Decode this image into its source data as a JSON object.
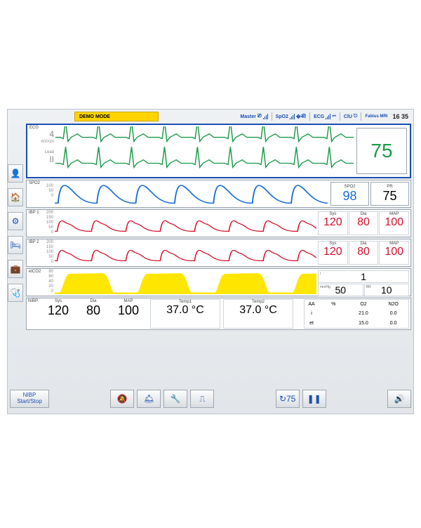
{
  "topbar": {
    "demo_mode": "DEMO MODE",
    "modules": [
      {
        "name": "Master"
      },
      {
        "name": "SpO2"
      },
      {
        "name": "ECG"
      },
      {
        "name": "ClU"
      },
      {
        "name": "Fabius MRI"
      }
    ],
    "clock": "16 35"
  },
  "nav": {
    "icons": [
      "👤",
      "🏠",
      "⚙",
      "🛏",
      "💼",
      "🩺"
    ]
  },
  "ecg": {
    "label": "ECG",
    "gain": "4",
    "gain_unit": "mV/cm",
    "lead_label": "Lead",
    "lead": "II",
    "hr": "75",
    "color": "#1a9a48",
    "wave": {
      "beats": 9,
      "period": 42,
      "baseline": 30,
      "q": -3,
      "r": -24,
      "s": 5,
      "t": -6
    }
  },
  "spo2": {
    "label": "SPO2",
    "yticks": [
      "100",
      "50",
      "0"
    ],
    "spo2_label": "SPO2",
    "spo2": "98",
    "spo2_color": "#1a6fd4",
    "pr_label": "PR",
    "pr": "75",
    "pr_color": "#222",
    "wave_color": "#1a6fd4",
    "wave": {
      "beats": 8,
      "period": 47
    }
  },
  "ibp1": {
    "label": "IBP 1",
    "yticks": [
      "200",
      "150",
      "100",
      "50",
      "0"
    ],
    "unit": "mmHg",
    "sys_label": "Sys",
    "sys": "120",
    "dia_label": "Dia",
    "dia": "80",
    "map_label": "MAP",
    "map": "100",
    "color": "#d4102a",
    "wave": {
      "beats": 9,
      "period": 42
    }
  },
  "ibp2": {
    "label": "IBP 2",
    "yticks": [
      "200",
      "150",
      "100",
      "50",
      "0"
    ],
    "unit": "mmHg",
    "sys_label": "Sys",
    "sys": "120",
    "dia_label": "Dia",
    "dia": "80",
    "map_label": "MAP",
    "map": "100",
    "color": "#d4102a",
    "wave": {
      "beats": 9,
      "period": 42
    }
  },
  "etco2": {
    "label": "etCO2",
    "yticks": [
      "80",
      "60",
      "40",
      "20",
      "0"
    ],
    "i_label": "i",
    "i": "1",
    "unit": "mmHg",
    "et_label": "et",
    "et": "50",
    "rr_label": "RR",
    "rr": "10",
    "color": "#ffe600",
    "wave": {
      "breaths": 4,
      "period": 95
    }
  },
  "nibp": {
    "label": "NIBP",
    "sys_label": "Sys",
    "sys": "120",
    "dia_label": "Dia",
    "dia": "80",
    "map_label": "MAP",
    "map": "100",
    "t1_label": "Temp1",
    "t1": "37.0 °C",
    "t2_label": "Temp2",
    "t2": "37.0 °C",
    "gas": {
      "aa": "AA",
      "pct": "%",
      "o2": "O2",
      "n2o": "N2O",
      "i": "i",
      "i_o2": "21.0",
      "i_n2o": "0.0",
      "et": "et",
      "et_o2": "15.0",
      "et_n2o": "0.0"
    }
  },
  "bottom": {
    "nibp_btn": "NIBP\nStart/Stop"
  },
  "colors": {
    "panel_border": "#1a4fb3",
    "bg": "#eef1f3"
  }
}
